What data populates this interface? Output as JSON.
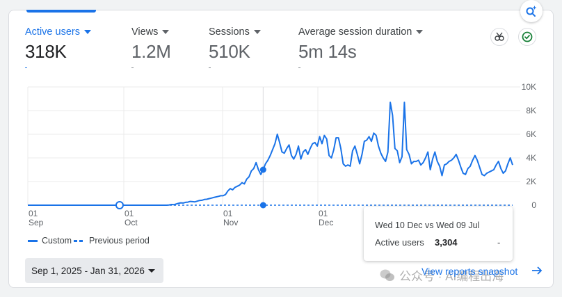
{
  "metrics": [
    {
      "label": "Active users",
      "value": "318K",
      "active": true
    },
    {
      "label": "Views",
      "value": "1.2M",
      "active": false
    },
    {
      "label": "Sessions",
      "value": "510K",
      "active": false
    },
    {
      "label": "Average session duration",
      "value": "5m 14s",
      "active": false
    }
  ],
  "icons": {
    "insights": "search-sparkle-icon",
    "compare": "compare-icon",
    "verified": "check-circle-icon"
  },
  "chart_data": {
    "type": "line",
    "x_tick_labels": [
      {
        "day": "01",
        "month": "Sep"
      },
      {
        "day": "01",
        "month": "Oct"
      },
      {
        "day": "01",
        "month": "Nov"
      },
      {
        "day": "01",
        "month": "Dec"
      }
    ],
    "y_tick_labels": [
      "10K",
      "8K",
      "6K",
      "4K",
      "2K",
      "0"
    ],
    "ylim": [
      0,
      10000
    ],
    "series": [
      {
        "name": "Custom",
        "style": "solid",
        "values": [
          0,
          0,
          0,
          0,
          0,
          0,
          0,
          0,
          0,
          0,
          0,
          0,
          0,
          0,
          0,
          0,
          0,
          0,
          0,
          0,
          0,
          0,
          0,
          0,
          0,
          0,
          0,
          0,
          0,
          0,
          0,
          0,
          0,
          0,
          0,
          0,
          0,
          0,
          0,
          0,
          0,
          0,
          0,
          0,
          0,
          0,
          0,
          0,
          0,
          0,
          0,
          0,
          0,
          0,
          0,
          0,
          0,
          0,
          0,
          0,
          20,
          60,
          40,
          100,
          150,
          200,
          180,
          240,
          260,
          320,
          300,
          280,
          340,
          400,
          420,
          480,
          500,
          550,
          600,
          650,
          700,
          750,
          800,
          800,
          900,
          1200,
          1400,
          1300,
          1500,
          1600,
          1700,
          1900,
          1800,
          2200,
          2400,
          2900,
          3100,
          3600,
          3000,
          2600,
          3000,
          3500,
          3800,
          4200,
          4700,
          5200,
          6000,
          5300,
          4500,
          4400,
          4800,
          5100,
          4200,
          3900,
          4300,
          5000,
          3900,
          4500,
          4700,
          4300,
          4800,
          5200,
          5300,
          5000,
          5800,
          5200,
          5900,
          5600,
          4200,
          4000,
          4700,
          5700,
          5700,
          4800,
          3500,
          3300,
          3400,
          3304,
          4600,
          5000,
          4300,
          3500,
          4300,
          5400,
          5500,
          5800,
          5400,
          6100,
          5900,
          5000,
          4400,
          4000,
          3700,
          4500,
          8700,
          7600,
          4800,
          4600,
          3600,
          4100,
          8700,
          4700,
          4300,
          3500,
          3700,
          3700,
          3800,
          3400,
          3600,
          4000,
          4500,
          3000,
          3900,
          4500,
          3700,
          3300,
          2500,
          3400,
          3500,
          3700,
          3800,
          4000,
          4300,
          3800,
          3200,
          2700,
          2600,
          3100,
          3300,
          3800,
          4200,
          3800,
          3200,
          2600,
          2500,
          2700,
          2800,
          2900,
          3000,
          3400,
          3700,
          3100,
          2700,
          2900,
          3500,
          4000,
          3400
        ]
      },
      {
        "name": "Previous period",
        "style": "dashed",
        "values": [
          0
        ]
      }
    ],
    "hover_index": 100,
    "marker_index": 39,
    "grid": true
  },
  "tooltip": {
    "title": "Wed 10 Dec vs Wed 09 Jul",
    "metric": "Active users",
    "value": "3,304",
    "previous": "-"
  },
  "legend": {
    "current": "Custom",
    "previous": "Previous period"
  },
  "date_range": "Sep 1, 2025 - Jan 31, 2026",
  "view_snapshot": "View reports snapshot",
  "watermark": "公众号 · AI编程出海"
}
